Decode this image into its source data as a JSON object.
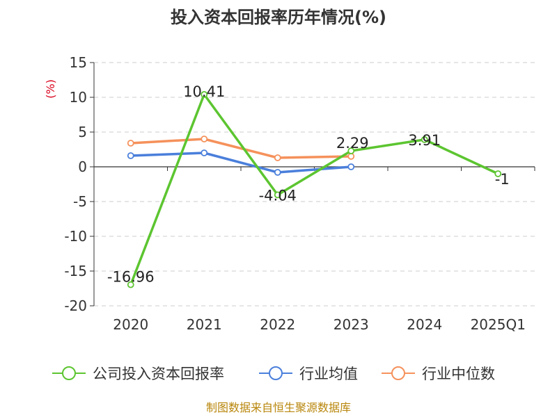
{
  "chart_data": {
    "type": "line",
    "title": "投入资本回报率历年情况(%)",
    "ylabel": "(%)",
    "xlabel": "",
    "categories": [
      "2020",
      "2021",
      "2022",
      "2023",
      "2024",
      "2025Q1"
    ],
    "ylim": [
      -20,
      15
    ],
    "yticks": [
      15,
      10,
      5,
      0,
      -5,
      -10,
      -15,
      -20
    ],
    "grid": true,
    "legend_position": "bottom",
    "series": [
      {
        "name": "公司投入资本回报率",
        "color": "#5cc530",
        "values": [
          -16.96,
          10.41,
          -4.04,
          2.29,
          3.91,
          -1
        ],
        "data_labels": [
          "-16.96",
          "10.41",
          "-4.04",
          "2.29",
          "3.91",
          "-1"
        ]
      },
      {
        "name": "行业均值",
        "color": "#4a7fdb",
        "values": [
          1.6,
          2.0,
          -0.8,
          0.0,
          null,
          null
        ]
      },
      {
        "name": "行业中位数",
        "color": "#f5915b",
        "values": [
          3.4,
          4.0,
          1.3,
          1.5,
          null,
          null
        ]
      }
    ]
  },
  "footer": "制图数据来自恒生聚源数据库"
}
